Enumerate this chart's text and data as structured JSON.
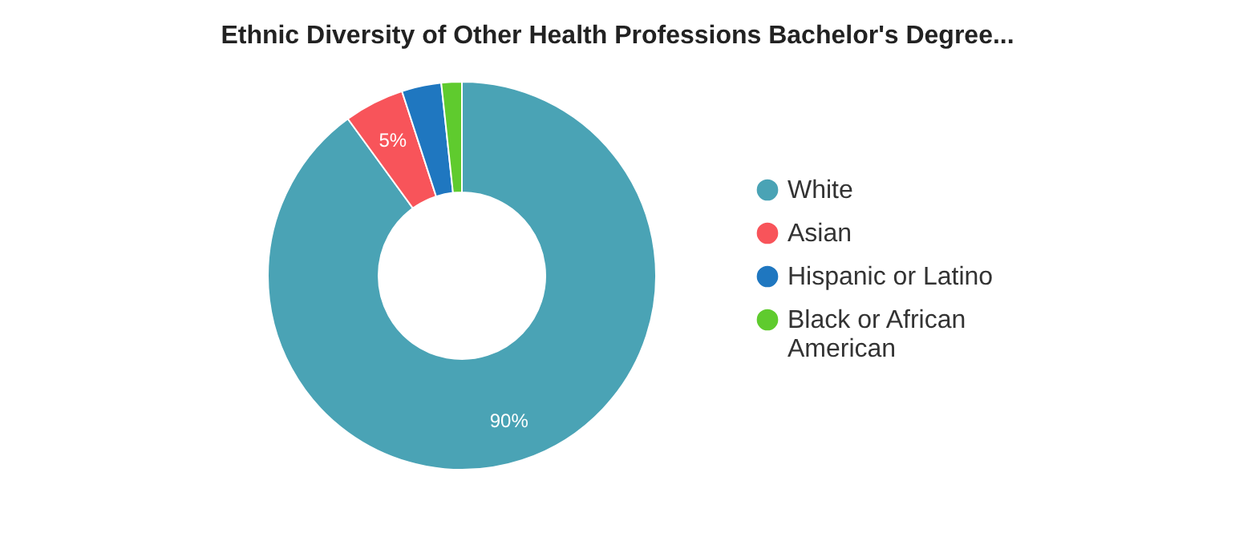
{
  "chart_data": {
    "type": "donut",
    "title": "Ethnic Diversity of Other Health Professions Bachelor's Degree...",
    "categories": [
      "White",
      "Asian",
      "Hispanic or Latino",
      "Black or African American"
    ],
    "values": [
      90,
      5,
      3.3,
      1.7
    ],
    "colors": [
      "#4aa3b5",
      "#f8545a",
      "#1f77c0",
      "#5fcb2e"
    ],
    "value_labels": [
      "90%",
      "5%",
      null,
      null
    ],
    "legend": "right"
  }
}
